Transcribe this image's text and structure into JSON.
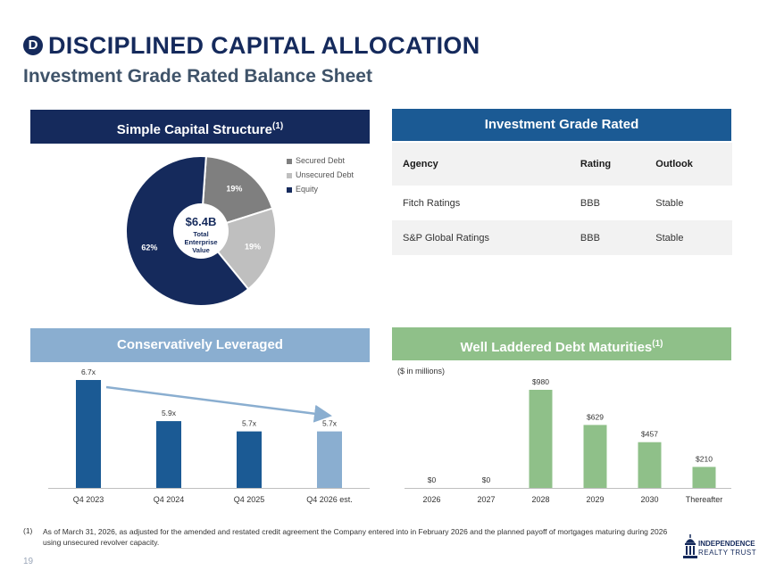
{
  "header": {
    "badge": "D",
    "title": "DISCIPLINED CAPITAL ALLOCATION",
    "subtitle": "Investment Grade Rated Balance Sheet"
  },
  "panels": {
    "structure": {
      "title": "Simple Capital Structure",
      "note": "(1)"
    },
    "rated": {
      "title": "Investment Grade Rated"
    },
    "leverage": {
      "title": "Conservatively Leveraged"
    },
    "maturities": {
      "title": "Well Laddered Debt Maturities",
      "note": "(1)",
      "units": "($ in millions)"
    }
  },
  "ratings_table": {
    "headers": [
      "Agency",
      "Rating",
      "Outlook"
    ],
    "rows": [
      [
        "Fitch Ratings",
        "BBB",
        "Stable"
      ],
      [
        "S&P Global Ratings",
        "BBB",
        "Stable"
      ]
    ]
  },
  "chart_data": [
    {
      "type": "pie",
      "title": "Simple Capital Structure",
      "center_label": {
        "value": "$6.4B",
        "caption": [
          "Total",
          "Enterprise",
          "Value"
        ]
      },
      "categories": [
        "Secured Debt",
        "Unsecured Debt",
        "Equity"
      ],
      "values": [
        19,
        19,
        62
      ],
      "labels": [
        "19%",
        "19%",
        "62%"
      ],
      "colors": [
        "#7f7f7f",
        "#bfbfbf",
        "#152a5c"
      ],
      "legend": "right"
    },
    {
      "type": "bar",
      "title": "Conservatively Leveraged",
      "categories": [
        "Q4 2023",
        "Q4 2024",
        "Q4 2025",
        "Q4 2026 est."
      ],
      "values": [
        6.7,
        5.9,
        5.7,
        5.7
      ],
      "labels": [
        "6.7x",
        "5.9x",
        "5.7x",
        "5.7x"
      ],
      "colors": [
        "#1b5a94",
        "#1b5a94",
        "#1b5a94",
        "#8aaed0"
      ],
      "annotation": "downward trend arrow"
    },
    {
      "type": "bar",
      "title": "Well Laddered Debt Maturities",
      "ylabel": "($ in millions)",
      "categories": [
        "2026",
        "2027",
        "2028",
        "2029",
        "2030",
        "Thereafter"
      ],
      "values": [
        0,
        0,
        980,
        629,
        457,
        210
      ],
      "labels": [
        "$0",
        "$0",
        "$980",
        "$629",
        "$457",
        "$210"
      ],
      "colors": [
        "#8fc089"
      ]
    }
  ],
  "footnote": {
    "mark": "(1)",
    "text": "As of March 31, 2026, as adjusted for the amended and restated credit agreement the Company entered into in February 2026 and the planned payoff of mortgages maturing during 2026 using unsecured revolver capacity."
  },
  "page_number": "19",
  "brand": {
    "line1": "INDEPENDENCE",
    "line2": "REALTY TRUST"
  }
}
